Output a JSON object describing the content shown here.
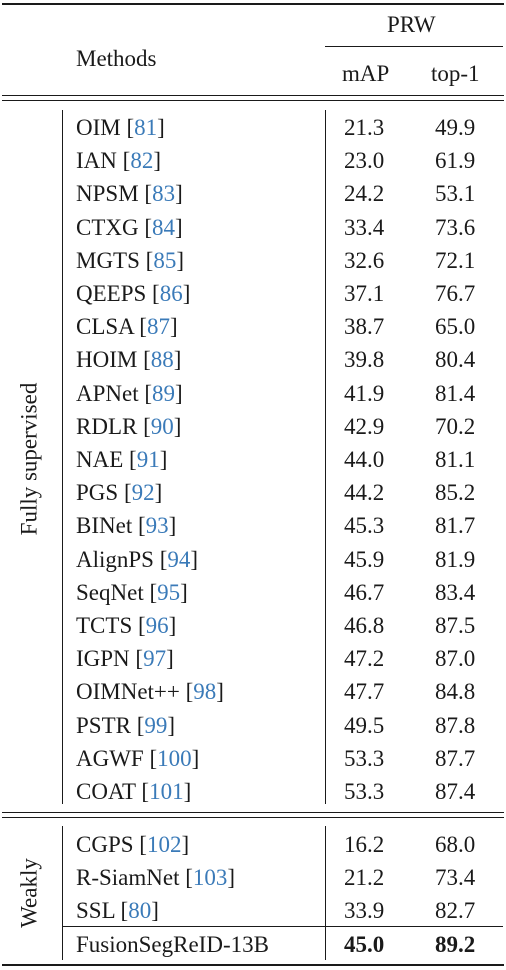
{
  "header": {
    "dataset": "PRW",
    "methods_label": "Methods",
    "metric1": "mAP",
    "metric2": "top-1"
  },
  "groups": [
    {
      "label": "Fully supervised",
      "rows": [
        {
          "method": "OIM",
          "ref": "81",
          "map": "21.3",
          "top1": "49.9"
        },
        {
          "method": "IAN",
          "ref": "82",
          "map": "23.0",
          "top1": "61.9"
        },
        {
          "method": "NPSM",
          "ref": "83",
          "map": "24.2",
          "top1": "53.1"
        },
        {
          "method": "CTXG",
          "ref": "84",
          "map": "33.4",
          "top1": "73.6"
        },
        {
          "method": "MGTS",
          "ref": "85",
          "map": "32.6",
          "top1": "72.1"
        },
        {
          "method": "QEEPS",
          "ref": "86",
          "map": "37.1",
          "top1": "76.7"
        },
        {
          "method": "CLSA",
          "ref": "87",
          "map": "38.7",
          "top1": "65.0"
        },
        {
          "method": "HOIM",
          "ref": "88",
          "map": "39.8",
          "top1": "80.4"
        },
        {
          "method": "APNet",
          "ref": "89",
          "map": "41.9",
          "top1": "81.4"
        },
        {
          "method": "RDLR",
          "ref": "90",
          "map": "42.9",
          "top1": "70.2"
        },
        {
          "method": "NAE",
          "ref": "91",
          "map": "44.0",
          "top1": "81.1"
        },
        {
          "method": "PGS",
          "ref": "92",
          "map": "44.2",
          "top1": "85.2"
        },
        {
          "method": "BINet",
          "ref": "93",
          "map": "45.3",
          "top1": "81.7"
        },
        {
          "method": "AlignPS",
          "ref": "94",
          "map": "45.9",
          "top1": "81.9"
        },
        {
          "method": "SeqNet",
          "ref": "95",
          "map": "46.7",
          "top1": "83.4"
        },
        {
          "method": "TCTS",
          "ref": "96",
          "map": "46.8",
          "top1": "87.5"
        },
        {
          "method": "IGPN",
          "ref": "97",
          "map": "47.2",
          "top1": "87.0"
        },
        {
          "method": "OIMNet++",
          "ref": "98",
          "map": "47.7",
          "top1": "84.8"
        },
        {
          "method": "PSTR",
          "ref": "99",
          "map": "49.5",
          "top1": "87.8"
        },
        {
          "method": "AGWF",
          "ref": "100",
          "map": "53.3",
          "top1": "87.7"
        },
        {
          "method": "COAT",
          "ref": "101",
          "map": "53.3",
          "top1": "87.4"
        }
      ]
    },
    {
      "label": "Weakly",
      "rows": [
        {
          "method": "CGPS",
          "ref": "102",
          "map": "16.2",
          "top1": "68.0"
        },
        {
          "method": "R-SiamNet",
          "ref": "103",
          "map": "21.2",
          "top1": "73.4"
        },
        {
          "method": "SSL",
          "ref": "80",
          "map": "33.9",
          "top1": "82.7"
        },
        {
          "method": "FusionSegReID-13B",
          "ref": "",
          "map": "45.0",
          "top1": "89.2",
          "highlight": true
        }
      ]
    }
  ]
}
